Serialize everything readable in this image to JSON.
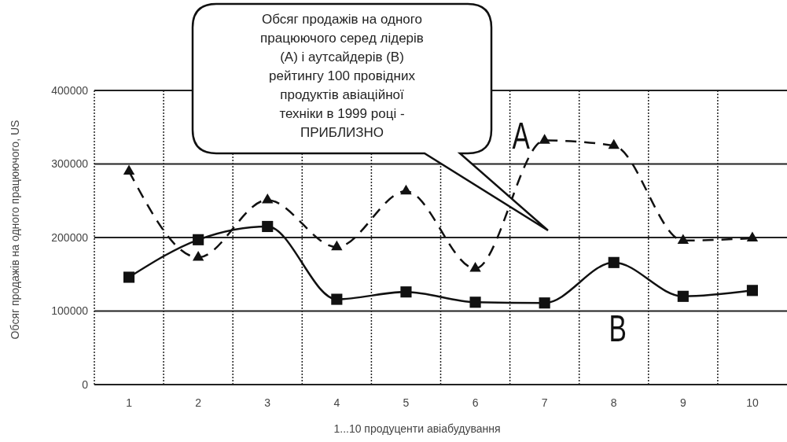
{
  "chart_data": {
    "type": "line",
    "xlabel": "1...10 продуценти авіабудування",
    "ylabel": "Обсяг продажів на одного працюючого, US",
    "categories": [
      "1",
      "2",
      "3",
      "4",
      "5",
      "6",
      "7",
      "8",
      "9",
      "10"
    ],
    "series": [
      {
        "name": "A",
        "color": "#111111",
        "line_style": "dashed",
        "marker": "triangle",
        "values": [
          290000,
          173000,
          251000,
          187000,
          263000,
          158000,
          332000,
          325000,
          196000,
          199000
        ]
      },
      {
        "name": "B",
        "color": "#111111",
        "line_style": "solid",
        "marker": "square",
        "values": [
          146000,
          197000,
          215000,
          116000,
          126000,
          112000,
          111000,
          166000,
          120000,
          128000
        ]
      }
    ],
    "ylim": [
      0,
      400000
    ],
    "yticks": [
      0,
      100000,
      200000,
      300000,
      400000
    ],
    "grid": true,
    "annotations": [
      "Обсяг продажів на одного\nпрацюючого серед лідерів\n(А) і аутсайдерів (В)\nрейтингу 100 провідних\nпродуктів авіаційної\nтехніки в 1999 році -\nПРИБЛИЗНО"
    ]
  }
}
